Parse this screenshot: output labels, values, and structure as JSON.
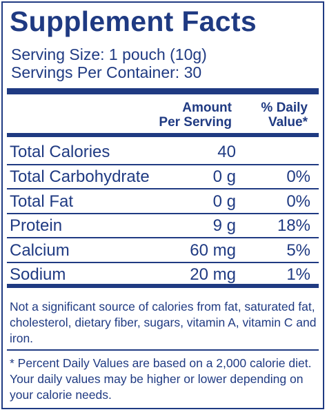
{
  "title": "Supplement Facts",
  "serving_size": "Serving Size: 1 pouch (10g)",
  "servings_per_container": "Servings Per Container: 30",
  "header": {
    "amount_line1": "Amount",
    "amount_line2": "Per Serving",
    "dv_line1": "% Daily",
    "dv_line2": "Value*"
  },
  "nutrients": [
    {
      "name": "Total Calories",
      "amount": "40",
      "dv": ""
    },
    {
      "name": "Total Carbohydrate",
      "amount": "0 g",
      "dv": "0%"
    },
    {
      "name": "Total Fat",
      "amount": "0 g",
      "dv": "0%"
    },
    {
      "name": "Protein",
      "amount": "9 g",
      "dv": "18%"
    },
    {
      "name": "Calcium",
      "amount": "60 mg",
      "dv": "5%"
    },
    {
      "name": "Sodium",
      "amount": "20 mg",
      "dv": "1%"
    }
  ],
  "footnote_significance": "Not a significant source of calories from fat, saturated fat, cholesterol, dietary fiber, sugars, vitamin A, vitamin C and iron.",
  "footnote_daily_values": "* Percent Daily Values are based on a 2,000 calorie diet. Your daily values may be higher or lower depending on your calorie needs.",
  "colors": {
    "ink": "#1f3a82",
    "background": "#ffffff"
  }
}
